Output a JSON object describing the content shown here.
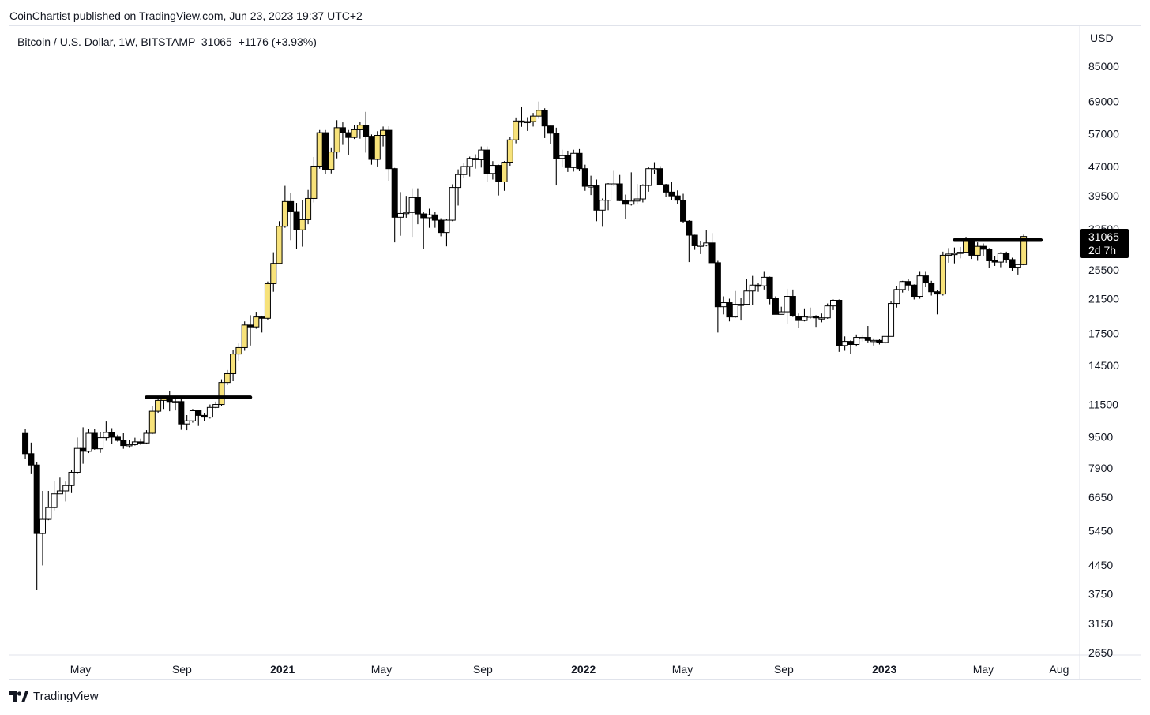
{
  "header": {
    "publisher_line": "CoinChartist published on TradingView.com, Jun 23, 2023 19:37 UTC+2",
    "symbol_line": "Bitcoin / U.S. Dollar, 1W, BITSTAMP  31065  +1176 (+3.93%)",
    "currency": "USD"
  },
  "footer": {
    "brand": "TradingView"
  },
  "price_tag": {
    "value": "31065",
    "countdown": "2d 7h"
  },
  "chart_data": {
    "type": "candlestick",
    "title": "Bitcoin / U.S. Dollar, 1W, BITSTAMP",
    "y_scale": "log",
    "ylim": [
      2650,
      100000
    ],
    "y_ticks": [
      85000,
      69000,
      57000,
      47000,
      39500,
      32500,
      25500,
      21500,
      17500,
      14500,
      11500,
      9500,
      7900,
      6650,
      5450,
      4450,
      3750,
      3150,
      2650
    ],
    "x_ticks": [
      {
        "label": "May",
        "date": "2020-05-01",
        "bold": false
      },
      {
        "label": "Sep",
        "date": "2020-09-01",
        "bold": false
      },
      {
        "label": "2021",
        "date": "2021-01-01",
        "bold": true
      },
      {
        "label": "May",
        "date": "2021-05-01",
        "bold": false
      },
      {
        "label": "Sep",
        "date": "2021-09-01",
        "bold": false
      },
      {
        "label": "2022",
        "date": "2022-01-01",
        "bold": true
      },
      {
        "label": "May",
        "date": "2022-05-01",
        "bold": false
      },
      {
        "label": "Sep",
        "date": "2022-09-01",
        "bold": false
      },
      {
        "label": "2023",
        "date": "2023-01-01",
        "bold": true
      },
      {
        "label": "May",
        "date": "2023-05-01",
        "bold": false
      },
      {
        "label": "Aug",
        "date": "2023-08-01",
        "bold": false
      }
    ],
    "colors": {
      "up": "#ffffff",
      "down": "#000000",
      "highlight": "#f7e27a",
      "wick": "#000000",
      "line": "#000000"
    },
    "candles": [
      [
        "2020-02-24",
        9690,
        9950,
        8350,
        8600
      ],
      [
        "2020-03-02",
        8600,
        9180,
        7650,
        8040
      ],
      [
        "2020-03-09",
        8040,
        8200,
        3850,
        5360
      ],
      [
        "2020-03-16",
        5360,
        6900,
        4440,
        5830
      ],
      [
        "2020-03-23",
        5830,
        6900,
        5800,
        6250
      ],
      [
        "2020-03-30",
        6250,
        7300,
        6150,
        6780
      ],
      [
        "2020-04-06",
        6780,
        7460,
        6780,
        6900
      ],
      [
        "2020-04-13",
        6900,
        7290,
        6480,
        7120
      ],
      [
        "2020-04-20",
        7120,
        7800,
        6810,
        7700
      ],
      [
        "2020-04-27",
        7700,
        9460,
        7620,
        8870
      ],
      [
        "2020-05-04",
        8870,
        10050,
        8100,
        8720
      ],
      [
        "2020-05-11",
        8720,
        9950,
        8630,
        9700
      ],
      [
        "2020-05-18",
        9700,
        9950,
        8800,
        8850
      ],
      [
        "2020-05-25",
        8850,
        9780,
        8640,
        9450
      ],
      [
        "2020-06-01",
        9450,
        10400,
        9280,
        9750
      ],
      [
        "2020-06-08",
        9750,
        10000,
        9120,
        9480
      ],
      [
        "2020-06-15",
        9480,
        9620,
        9230,
        9300
      ],
      [
        "2020-06-22",
        9300,
        9700,
        8850,
        9020
      ],
      [
        "2020-06-29",
        9020,
        9320,
        8900,
        9070
      ],
      [
        "2020-07-06",
        9070,
        9450,
        9020,
        9220
      ],
      [
        "2020-07-13",
        9220,
        9400,
        9050,
        9160
      ],
      [
        "2020-07-20",
        9160,
        9880,
        9100,
        9700
      ],
      [
        "2020-07-27",
        9700,
        11400,
        9650,
        11050
      ],
      [
        "2020-08-03",
        11050,
        11900,
        10950,
        11780
      ],
      [
        "2020-08-10",
        11780,
        12100,
        11200,
        11950
      ],
      [
        "2020-08-17",
        11950,
        12450,
        11050,
        11650
      ],
      [
        "2020-08-24",
        11650,
        11900,
        11100,
        11700
      ],
      [
        "2020-08-31",
        11700,
        12050,
        9900,
        10250
      ],
      [
        "2020-09-07",
        10250,
        10800,
        9880,
        10440
      ],
      [
        "2020-09-14",
        10440,
        11200,
        10330,
        11080
      ],
      [
        "2020-09-21",
        11080,
        11120,
        10130,
        10780
      ],
      [
        "2020-09-28",
        10780,
        10950,
        10420,
        10670
      ],
      [
        "2020-10-05",
        10670,
        11500,
        10580,
        11300
      ],
      [
        "2020-10-12",
        11300,
        11700,
        11250,
        11500
      ],
      [
        "2020-10-19",
        11500,
        13350,
        11400,
        13100
      ],
      [
        "2020-10-26",
        13100,
        14100,
        12900,
        13800
      ],
      [
        "2020-11-02",
        13800,
        15900,
        13200,
        15500
      ],
      [
        "2020-11-09",
        15500,
        16500,
        14900,
        16100
      ],
      [
        "2020-11-16",
        16100,
        18800,
        15800,
        18400
      ],
      [
        "2020-11-23",
        18400,
        19500,
        16300,
        18200
      ],
      [
        "2020-11-30",
        18200,
        19900,
        18000,
        19300
      ],
      [
        "2020-12-07",
        19300,
        19450,
        17600,
        19150
      ],
      [
        "2020-12-14",
        19150,
        23800,
        19000,
        23500
      ],
      [
        "2020-12-21",
        23500,
        28300,
        22400,
        26500
      ],
      [
        "2020-12-28",
        26500,
        34000,
        26400,
        33000
      ],
      [
        "2021-01-04",
        33000,
        41900,
        32700,
        38200
      ],
      [
        "2021-01-11",
        38200,
        40100,
        30400,
        36000
      ],
      [
        "2021-01-18",
        36000,
        37900,
        28800,
        32300
      ],
      [
        "2021-01-25",
        32300,
        38600,
        29250,
        34300
      ],
      [
        "2021-02-01",
        34300,
        40900,
        33400,
        38900
      ],
      [
        "2021-02-08",
        38900,
        49700,
        38000,
        47100
      ],
      [
        "2021-02-15",
        47100,
        58300,
        46400,
        57400
      ],
      [
        "2021-02-22",
        57400,
        58300,
        44900,
        46200
      ],
      [
        "2021-03-01",
        46200,
        52600,
        45100,
        51200
      ],
      [
        "2021-03-08",
        51200,
        61800,
        49300,
        59100
      ],
      [
        "2021-03-15",
        59100,
        61000,
        53400,
        57400
      ],
      [
        "2021-03-22",
        57400,
        58300,
        50400,
        55800
      ],
      [
        "2021-03-29",
        55800,
        60000,
        55300,
        58400
      ],
      [
        "2021-04-05",
        58400,
        61200,
        55400,
        60000
      ],
      [
        "2021-04-12",
        60000,
        64900,
        51000,
        56200
      ],
      [
        "2021-04-19",
        56200,
        56800,
        47500,
        49000
      ],
      [
        "2021-04-26",
        49000,
        57900,
        47000,
        56500
      ],
      [
        "2021-05-03",
        56500,
        59500,
        52900,
        58200
      ],
      [
        "2021-05-10",
        58200,
        59600,
        43200,
        46400
      ],
      [
        "2021-05-17",
        46400,
        46600,
        30000,
        34800
      ],
      [
        "2021-05-24",
        34800,
        40400,
        31200,
        35600
      ],
      [
        "2021-05-31",
        35600,
        39500,
        34700,
        35800
      ],
      [
        "2021-06-07",
        35800,
        41300,
        31000,
        39100
      ],
      [
        "2021-06-14",
        39100,
        41300,
        33400,
        35500
      ],
      [
        "2021-06-21",
        35500,
        36000,
        28800,
        34700
      ],
      [
        "2021-06-28",
        34700,
        36600,
        32700,
        35300
      ],
      [
        "2021-07-05",
        35300,
        35900,
        32700,
        34200
      ],
      [
        "2021-07-12",
        34200,
        34600,
        31100,
        31800
      ],
      [
        "2021-07-19",
        31800,
        34500,
        29300,
        34200
      ],
      [
        "2021-07-26",
        34200,
        42300,
        34000,
        41500
      ],
      [
        "2021-08-02",
        41500,
        46200,
        37300,
        44800
      ],
      [
        "2021-08-09",
        44800,
        48100,
        43800,
        47000
      ],
      [
        "2021-08-16",
        47000,
        49800,
        44300,
        49300
      ],
      [
        "2021-08-23",
        49300,
        50500,
        46400,
        48900
      ],
      [
        "2021-08-30",
        48900,
        52900,
        46700,
        51800
      ],
      [
        "2021-09-06",
        51800,
        52900,
        42800,
        45100
      ],
      [
        "2021-09-13",
        45100,
        48500,
        43500,
        47300
      ],
      [
        "2021-09-20",
        47300,
        47500,
        39600,
        42900
      ],
      [
        "2021-09-27",
        42900,
        48500,
        40700,
        48200
      ],
      [
        "2021-10-04",
        48200,
        56000,
        47200,
        55000
      ],
      [
        "2021-10-11",
        55000,
        62800,
        53900,
        61500
      ],
      [
        "2021-10-18",
        61500,
        67000,
        59400,
        61300
      ],
      [
        "2021-10-25",
        61300,
        62900,
        58000,
        61300
      ],
      [
        "2021-11-01",
        61300,
        64500,
        59500,
        63300
      ],
      [
        "2021-11-08",
        63300,
        69000,
        62300,
        65500
      ],
      [
        "2021-11-15",
        65500,
        66300,
        55600,
        59700
      ],
      [
        "2021-11-22",
        59700,
        59800,
        53600,
        57200
      ],
      [
        "2021-11-29",
        57200,
        59100,
        42000,
        49300
      ],
      [
        "2021-12-06",
        49300,
        51900,
        46800,
        50100
      ],
      [
        "2021-12-13",
        50100,
        51600,
        45500,
        46700
      ],
      [
        "2021-12-20",
        46700,
        51900,
        45600,
        50800
      ],
      [
        "2021-12-27",
        50800,
        52100,
        45700,
        46400
      ],
      [
        "2022-01-03",
        46400,
        47500,
        40700,
        41800
      ],
      [
        "2022-01-10",
        41800,
        44500,
        39700,
        41900
      ],
      [
        "2022-01-17",
        41900,
        43500,
        34000,
        36300
      ],
      [
        "2022-01-24",
        36300,
        38900,
        32900,
        38500
      ],
      [
        "2022-01-31",
        38500,
        42600,
        36300,
        42400
      ],
      [
        "2022-02-07",
        42400,
        45800,
        41900,
        42400
      ],
      [
        "2022-02-14",
        42400,
        44700,
        38300,
        38400
      ],
      [
        "2022-02-21",
        38400,
        39800,
        34400,
        37600
      ],
      [
        "2022-02-28",
        37600,
        45400,
        37300,
        38300
      ],
      [
        "2022-03-07",
        38300,
        42400,
        37600,
        38800
      ],
      [
        "2022-03-14",
        38800,
        42300,
        38000,
        42000
      ],
      [
        "2022-03-21",
        42000,
        46900,
        40500,
        46400
      ],
      [
        "2022-03-28",
        46400,
        48200,
        45000,
        46400
      ],
      [
        "2022-04-04",
        46400,
        47100,
        42200,
        42200
      ],
      [
        "2022-04-11",
        42200,
        42400,
        39200,
        40400
      ],
      [
        "2022-04-18",
        40400,
        42900,
        38500,
        39500
      ],
      [
        "2022-04-25",
        39500,
        40800,
        37600,
        38500
      ],
      [
        "2022-05-02",
        38500,
        40000,
        33700,
        34000
      ],
      [
        "2022-05-09",
        34000,
        34200,
        26700,
        31300
      ],
      [
        "2022-05-16",
        31300,
        31400,
        28700,
        29400
      ],
      [
        "2022-05-23",
        29400,
        30200,
        28000,
        29500
      ],
      [
        "2022-05-30",
        29500,
        32300,
        29300,
        29900
      ],
      [
        "2022-06-06",
        29900,
        31700,
        26600,
        26600
      ],
      [
        "2022-06-13",
        26600,
        26900,
        17600,
        20500
      ],
      [
        "2022-06-20",
        20500,
        21800,
        19600,
        21000
      ],
      [
        "2022-06-27",
        21000,
        21500,
        18800,
        19300
      ],
      [
        "2022-07-04",
        19300,
        22500,
        19200,
        20800
      ],
      [
        "2022-07-11",
        20800,
        21600,
        18900,
        20800
      ],
      [
        "2022-07-18",
        20800,
        24200,
        20800,
        22500
      ],
      [
        "2022-07-25",
        22500,
        24600,
        20700,
        23300
      ],
      [
        "2022-08-01",
        23300,
        23600,
        22400,
        23200
      ],
      [
        "2022-08-08",
        23200,
        25200,
        22700,
        24400
      ],
      [
        "2022-08-15",
        24400,
        24500,
        20800,
        21500
      ],
      [
        "2022-08-22",
        21500,
        21800,
        19800,
        19600
      ],
      [
        "2022-08-29",
        19600,
        20500,
        19600,
        19900
      ],
      [
        "2022-09-05",
        19900,
        22800,
        18500,
        21800
      ],
      [
        "2022-09-12",
        21800,
        22700,
        19300,
        19400
      ],
      [
        "2022-09-19",
        19400,
        19700,
        18100,
        18900
      ],
      [
        "2022-09-26",
        18900,
        20300,
        18800,
        19300
      ],
      [
        "2022-10-03",
        19300,
        20400,
        19100,
        19400
      ],
      [
        "2022-10-10",
        19400,
        19500,
        18200,
        19200
      ],
      [
        "2022-10-17",
        19200,
        19700,
        18700,
        19200
      ],
      [
        "2022-10-24",
        19200,
        20900,
        19100,
        20600
      ],
      [
        "2022-10-31",
        20600,
        21400,
        20100,
        21300
      ],
      [
        "2022-11-07",
        21300,
        21400,
        15700,
        16300
      ],
      [
        "2022-11-14",
        16300,
        17200,
        15800,
        16700
      ],
      [
        "2022-11-21",
        16700,
        16800,
        15500,
        16400
      ],
      [
        "2022-11-28",
        16400,
        17400,
        16200,
        17100
      ],
      [
        "2022-12-05",
        17100,
        17400,
        16700,
        17100
      ],
      [
        "2022-12-12",
        17100,
        18300,
        16600,
        16800
      ],
      [
        "2022-12-19",
        16800,
        17000,
        16300,
        16800
      ],
      [
        "2022-12-26",
        16800,
        16900,
        16400,
        16600
      ],
      [
        "2023-01-02",
        16600,
        17200,
        16500,
        17200
      ],
      [
        "2023-01-09",
        17200,
        21200,
        17200,
        20900
      ],
      [
        "2023-01-16",
        20900,
        23200,
        20400,
        22700
      ],
      [
        "2023-01-23",
        22700,
        23900,
        22300,
        23800
      ],
      [
        "2023-01-30",
        23800,
        24200,
        22500,
        23300
      ],
      [
        "2023-02-06",
        23300,
        23400,
        21400,
        21800
      ],
      [
        "2023-02-13",
        21800,
        25200,
        21500,
        24600
      ],
      [
        "2023-02-20",
        24600,
        25200,
        23000,
        23600
      ],
      [
        "2023-02-27",
        23600,
        23900,
        21900,
        22400
      ],
      [
        "2023-03-06",
        22400,
        22600,
        19600,
        22100
      ],
      [
        "2023-03-13",
        22100,
        28400,
        21900,
        27800
      ],
      [
        "2023-03-20",
        27800,
        29000,
        26600,
        28000
      ],
      [
        "2023-03-27",
        28000,
        29100,
        26500,
        28100
      ],
      [
        "2023-04-03",
        28100,
        29200,
        27300,
        28300
      ],
      [
        "2023-04-10",
        28300,
        31000,
        28200,
        30400
      ],
      [
        "2023-04-17",
        30400,
        30500,
        27200,
        27800
      ],
      [
        "2023-04-24",
        27800,
        30000,
        26900,
        29300
      ],
      [
        "2023-05-01",
        29300,
        29800,
        27700,
        28800
      ],
      [
        "2023-05-08",
        28800,
        29000,
        25800,
        26900
      ],
      [
        "2023-05-15",
        26900,
        27700,
        26100,
        26700
      ],
      [
        "2023-05-22",
        26700,
        28300,
        25900,
        28100
      ],
      [
        "2023-05-29",
        28100,
        28400,
        26600,
        27100
      ],
      [
        "2023-06-05",
        27100,
        27400,
        25300,
        25900
      ],
      [
        "2023-06-12",
        25900,
        26200,
        24800,
        26300
      ],
      [
        "2023-06-19",
        26300,
        31400,
        26200,
        31065
      ]
    ],
    "highlighted_candles": [
      "2020-07-27",
      "2020-08-03",
      "2020-08-10",
      "2020-10-19",
      "2020-10-26",
      "2020-11-02",
      "2020-11-09",
      "2020-11-16",
      "2020-11-30",
      "2020-12-14",
      "2020-12-21",
      "2020-12-28",
      "2021-01-04",
      "2021-01-25",
      "2021-02-01",
      "2021-02-08",
      "2021-02-15",
      "2021-03-01",
      "2021-03-08",
      "2021-03-29",
      "2021-04-05",
      "2021-04-26",
      "2021-05-03",
      "2021-09-27",
      "2021-10-04",
      "2021-10-11",
      "2021-10-25",
      "2021-11-01",
      "2021-11-08",
      "2023-03-13",
      "2023-04-10",
      "2023-04-24",
      "2023-06-19"
    ],
    "horizontal_lines": [
      {
        "value": 12000,
        "from": "2020-07-20",
        "to": "2020-11-23"
      },
      {
        "value": 30400,
        "from": "2023-03-27",
        "to": "2023-07-10"
      }
    ],
    "current_price": 31065
  }
}
